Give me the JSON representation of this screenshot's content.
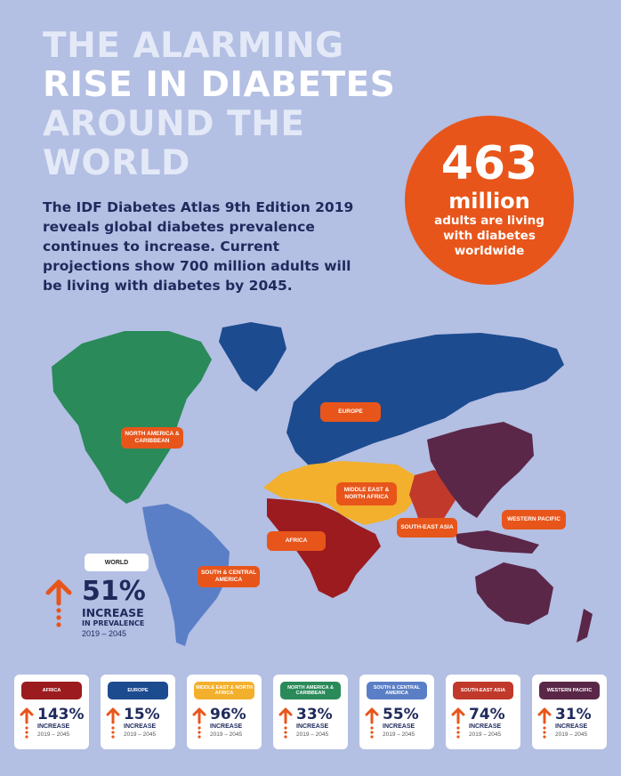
{
  "title": {
    "line1": "THE ALARMING",
    "line2": "RISE IN DIABETES",
    "line3": "AROUND THE",
    "line4": "WORLD"
  },
  "intro": "The IDF Diabetes Atlas 9th Edition 2019 reveals global diabetes prevalence continues to increase. Current projections show 700 million adults will be living with diabetes by 2045.",
  "stat": {
    "number": "463",
    "unit": "million",
    "desc": "adults are living with diabetes worldwide"
  },
  "map_labels": {
    "europe": "EUROPE",
    "north_america": "NORTH AMERICA & CARIBBEAN",
    "middle_east": "MIDDLE EAST & NORTH AFRICA",
    "africa": "AFRICA",
    "south_east_asia": "SOUTH-EAST ASIA",
    "western_pacific": "WESTERN PACIFIC",
    "south_central_america": "SOUTH & CENTRAL AMERICA"
  },
  "world": {
    "label": "WORLD",
    "percent": "51%",
    "increase": "INCREASE",
    "sub": "IN PREVALENCE",
    "years": "2019 – 2045"
  },
  "regions": [
    {
      "name": "AFRICA",
      "percent": "143%",
      "increase": "INCREASE",
      "years": "2019 – 2045",
      "color": "#9b1b1e"
    },
    {
      "name": "EUROPE",
      "percent": "15%",
      "increase": "INCREASE",
      "years": "2019 – 2045",
      "color": "#1d4b8f"
    },
    {
      "name": "MIDDLE EAST & NORTH AFRICA",
      "percent": "96%",
      "increase": "INCREASE",
      "years": "2019 – 2045",
      "color": "#f3b02c"
    },
    {
      "name": "NORTH AMERICA & CARIBBEAN",
      "percent": "33%",
      "increase": "INCREASE",
      "years": "2019 – 2045",
      "color": "#2a8a5a"
    },
    {
      "name": "SOUTH & CENTRAL AMERICA",
      "percent": "55%",
      "increase": "INCREASE",
      "years": "2019 – 2045",
      "color": "#5b7fc6"
    },
    {
      "name": "SOUTH-EAST ASIA",
      "percent": "74%",
      "increase": "INCREASE",
      "years": "2019 – 2045",
      "color": "#c0392b"
    },
    {
      "name": "WESTERN PACIFIC",
      "percent": "31%",
      "increase": "INCREASE",
      "years": "2019 – 2045",
      "color": "#5a2748"
    }
  ],
  "colors": {
    "background": "#b3bfe3",
    "accent": "#e8551a",
    "text": "#1f2a5c"
  }
}
